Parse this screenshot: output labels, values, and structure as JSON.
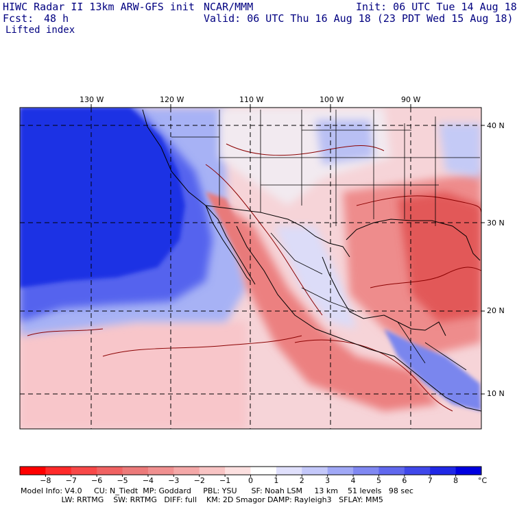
{
  "header": {
    "title": "HIWC Radar II 13km ARW-GFS init",
    "org": "NCAR/MMM",
    "init": "Init: 06 UTC Tue 14 Aug 18",
    "fcst_label": "Fcst:",
    "fcst_value": "48 h",
    "valid": "Valid: 06 UTC Thu 16 Aug 18 (23 PDT Wed 15 Aug 18)",
    "field": "Lifted index"
  },
  "map": {
    "lon_labels": [
      "130 W",
      "120 W",
      "110 W",
      "100 W",
      "90 W"
    ],
    "lat_labels": [
      "40 N",
      "30 N",
      "20 N",
      "10 N"
    ],
    "colors": {
      "deep_blue": "#1a2ee0",
      "mid_blue": "#5a6cf0",
      "light_blue": "#a8b4f6",
      "pale": "#f4eef2",
      "pink": "#f6c8cc",
      "salmon": "#ee8e8e",
      "red": "#e25a5a",
      "dark_red": "#d83c3c",
      "contour": "#8a0000",
      "border": "#000000"
    }
  },
  "colorbar": {
    "ticks": [
      "−8",
      "−7",
      "−6",
      "−5",
      "−4",
      "−3",
      "−2",
      "−1",
      "0",
      "1",
      "2",
      "3",
      "4",
      "5",
      "6",
      "7",
      "8"
    ],
    "unit": "°C",
    "colors": [
      "#ff0000",
      "#ff2a2a",
      "#f84848",
      "#f06262",
      "#ec7a7a",
      "#f09090",
      "#f4a8a8",
      "#f8c4c4",
      "#fce0e0",
      "#ffffff",
      "#e0e0fc",
      "#c4c8fa",
      "#a0a8f6",
      "#8088f2",
      "#6068ee",
      "#4048ea",
      "#2028e6",
      "#0000e0"
    ]
  },
  "footer": {
    "line1": "Model Info: V4.0     CU: N_Tiedt  MP: Goddard     PBL: YSU      SF: Noah LSM     13 km    51 levels   98 sec",
    "line2": "                 LW: RRTMG    SW: RRTMG   DIFF: full    KM: 2D Smagor DAMP: Rayleigh3   SFLAY: MM5"
  }
}
